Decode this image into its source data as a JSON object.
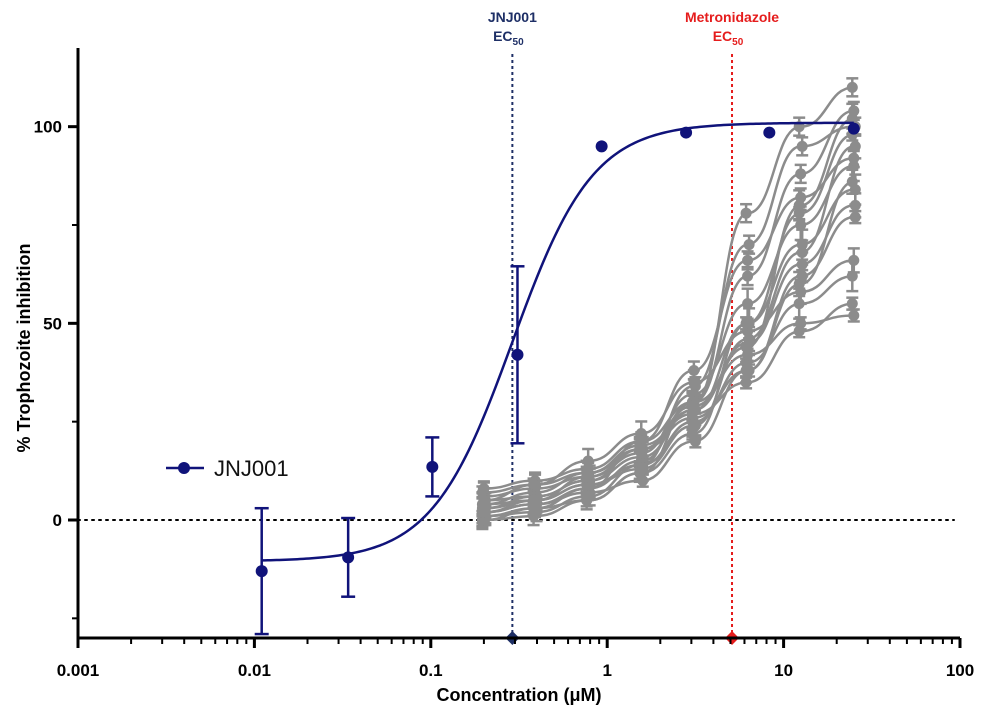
{
  "chart_data": {
    "type": "scatter",
    "xlabel": "Concentration (μM)",
    "ylabel": "% Trophozoite inhibition",
    "xscale": "log",
    "xlim": [
      0.001,
      100
    ],
    "ylim": [
      -30,
      120
    ],
    "xticks": [
      0.001,
      0.01,
      0.1,
      1,
      10,
      100
    ],
    "xtick_labels": [
      "0.001",
      "0.01",
      "0.1",
      "1",
      "10",
      "100"
    ],
    "yticks": [
      0,
      50,
      100
    ],
    "ytick_labels": [
      "0",
      "50",
      "100"
    ],
    "grid": false,
    "legend_position": "left-middle",
    "colors": {
      "jnj": "#10137a",
      "metro": "#8c8c8c",
      "metro_ec50": "#e51c1c",
      "axis": "#000000"
    },
    "annotations": [
      {
        "id": "jnj_ec50",
        "line1": "JNJ001",
        "line2": "EC",
        "sub": "50",
        "x": 0.29,
        "color": "#1e2f66"
      },
      {
        "id": "metro_ec50",
        "line1": "Metronidazole",
        "line2": "EC",
        "sub": "50",
        "x": 5.1,
        "color": "#e51c1c"
      }
    ],
    "reference_line_y": 0,
    "series": [
      {
        "name": "JNJ001",
        "color": "#10137a",
        "points": [
          {
            "x": 0.011,
            "y": -13,
            "err": 16
          },
          {
            "x": 0.034,
            "y": -9.5,
            "err": 10
          },
          {
            "x": 0.102,
            "y": 13.5,
            "err": 7.5
          },
          {
            "x": 0.31,
            "y": 42,
            "err": 22.5
          },
          {
            "x": 0.93,
            "y": 95,
            "err": 0
          },
          {
            "x": 2.8,
            "y": 98.5,
            "err": 0
          },
          {
            "x": 8.3,
            "y": 98.5,
            "err": 0
          },
          {
            "x": 25,
            "y": 99.5,
            "err": 0
          }
        ],
        "fit": {
          "bottom": -10.5,
          "top": 101,
          "ec50": 0.29,
          "hill": 1.9
        }
      },
      {
        "name": "",
        "color": "#8c8c8c",
        "x": [
          0.2,
          0.39,
          0.78,
          1.56,
          3.1,
          6.25,
          12.5,
          25
        ],
        "curves": [
          [
            0,
            3,
            5,
            12,
            22,
            50,
            78,
            98
          ],
          [
            2,
            4,
            8,
            15,
            30,
            62,
            88,
            104
          ],
          [
            5,
            6,
            10,
            18,
            28,
            45,
            65,
            80
          ],
          [
            3,
            5,
            9,
            14,
            25,
            40,
            55,
            62
          ],
          [
            8,
            10,
            13,
            20,
            30,
            42,
            50,
            52
          ],
          [
            1,
            2,
            6,
            14,
            34,
            70,
            95,
            100
          ],
          [
            4,
            7,
            12,
            18,
            26,
            38,
            60,
            86
          ],
          [
            6,
            8,
            11,
            17,
            32,
            55,
            75,
            90
          ],
          [
            2,
            4,
            7,
            10,
            20,
            38,
            62,
            77
          ],
          [
            0,
            1,
            5,
            12,
            30,
            78,
            100,
            110
          ],
          [
            5,
            9,
            15,
            22,
            35,
            48,
            58,
            66
          ],
          [
            3,
            6,
            10,
            16,
            28,
            50,
            70,
            84
          ],
          [
            7,
            9,
            12,
            19,
            27,
            35,
            48,
            55
          ],
          [
            1,
            3,
            8,
            20,
            38,
            66,
            82,
            92
          ],
          [
            4,
            5,
            9,
            13,
            24,
            46,
            68,
            95
          ],
          [
            2,
            5,
            11,
            18,
            29,
            44,
            80,
            102
          ]
        ]
      }
    ]
  }
}
